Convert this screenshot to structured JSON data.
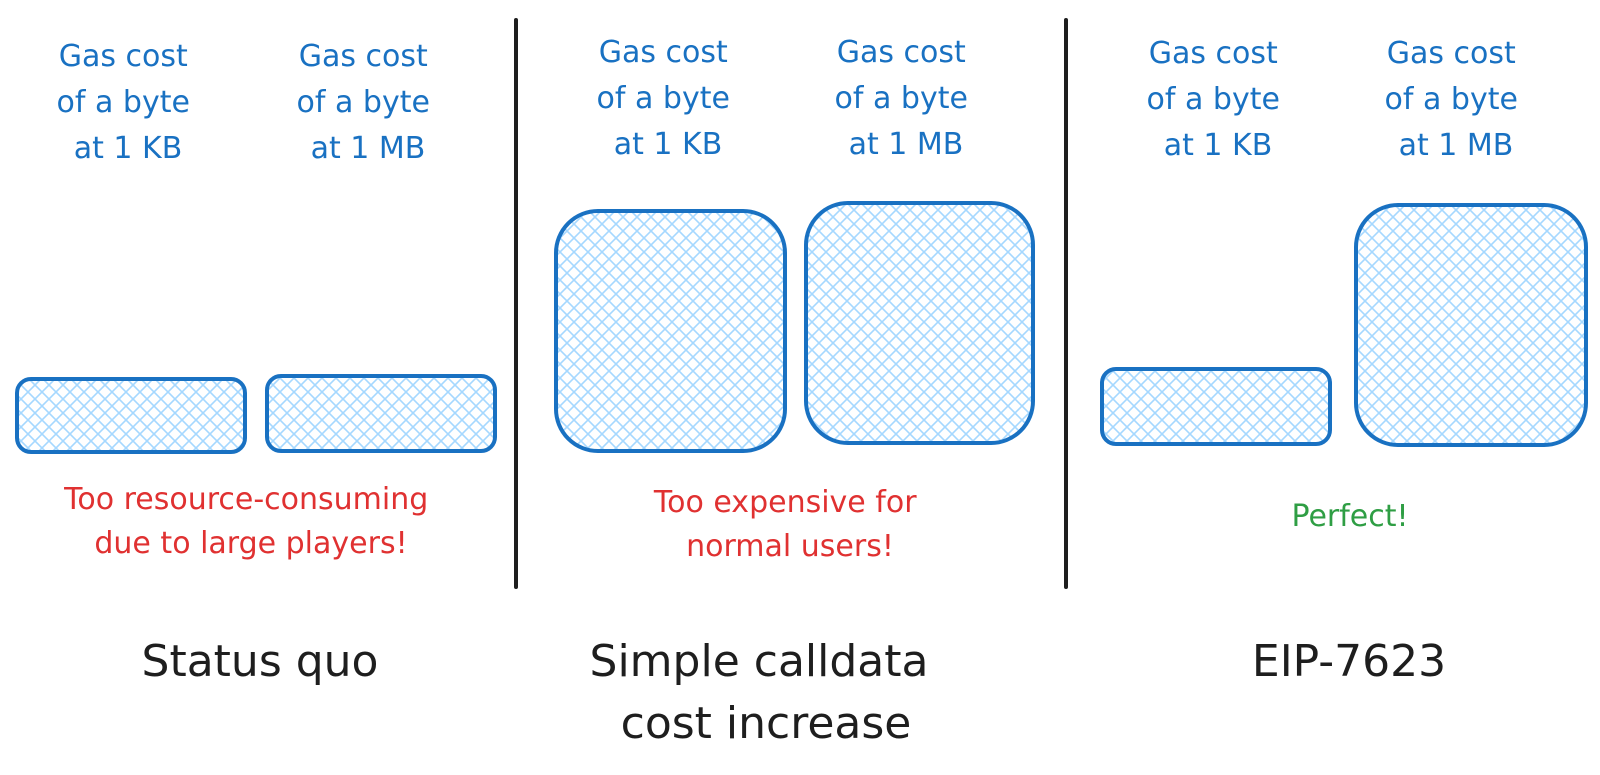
{
  "panels": [
    {
      "labels": [
        [
          "Gas cost",
          "of a byte",
          "at 1 KB"
        ],
        [
          "Gas cost",
          "of a byte",
          "at 1 MB"
        ]
      ],
      "bar_levels": [
        "low",
        "low"
      ],
      "note": [
        "Too resource-consuming",
        "due to large players!"
      ],
      "note_color": "#e03131",
      "title": [
        "Status quo"
      ]
    },
    {
      "labels": [
        [
          "Gas cost",
          "of a byte",
          "at 1 KB"
        ],
        [
          "Gas cost",
          "of a byte",
          "at 1 MB"
        ]
      ],
      "bar_levels": [
        "high",
        "high"
      ],
      "note": [
        "Too expensive for",
        "normal users!"
      ],
      "note_color": "#e03131",
      "title": [
        "Simple calldata",
        "cost increase"
      ]
    },
    {
      "labels": [
        [
          "Gas cost",
          "of a byte",
          "at 1 KB"
        ],
        [
          "Gas cost",
          "of a byte",
          "at 1 MB"
        ]
      ],
      "bar_levels": [
        "low",
        "high"
      ],
      "note": [
        "Perfect!"
      ],
      "note_color": "#2f9e44",
      "title": [
        "EIP-7623"
      ]
    }
  ],
  "colors": {
    "box_stroke": "#1971c2",
    "box_hatch": "#a5d8ff",
    "divider": "#1e1e1e"
  }
}
